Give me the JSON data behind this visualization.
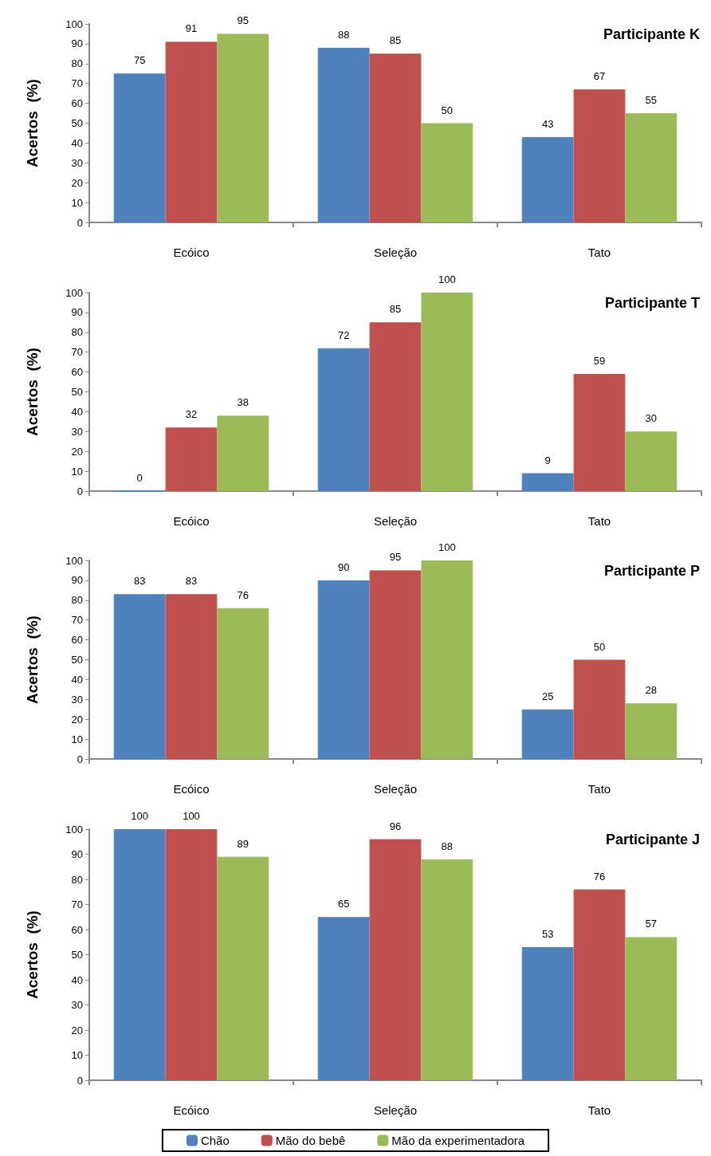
{
  "chart_data": [
    {
      "type": "bar",
      "ylabel": "Acertos  (%)",
      "annotations": [
        "Participante K"
      ],
      "categories": [
        "Ecóico",
        "Seleção",
        "Tato"
      ],
      "series": [
        {
          "color": "#4f81bd",
          "values": [
            75,
            88,
            43
          ]
        },
        {
          "color": "#c0504d",
          "values": [
            91,
            85,
            67
          ]
        },
        {
          "color": "#9bbb59",
          "values": [
            95,
            50,
            55
          ]
        }
      ],
      "ylim": [
        0,
        100
      ],
      "yticks": [
        0,
        10,
        20,
        30,
        40,
        50,
        60,
        70,
        80,
        90,
        100
      ],
      "grid": false,
      "legend": false,
      "data_labels": true
    },
    {
      "type": "bar",
      "ylabel": "Acertos  (%)",
      "annotations": [
        "Participante T"
      ],
      "categories": [
        "Ecóico",
        "Seleção",
        "Tato"
      ],
      "series": [
        {
          "color": "#4f81bd",
          "values": [
            0,
            72,
            9
          ]
        },
        {
          "color": "#c0504d",
          "values": [
            32,
            85,
            59
          ]
        },
        {
          "color": "#9bbb59",
          "values": [
            38,
            100,
            30
          ]
        }
      ],
      "ylim": [
        0,
        100
      ],
      "yticks": [
        0,
        10,
        20,
        30,
        40,
        50,
        60,
        70,
        80,
        90,
        100
      ],
      "grid": false,
      "legend": false,
      "data_labels": true
    },
    {
      "type": "bar",
      "ylabel": "Acertos  (%)",
      "annotations": [
        "Participante P"
      ],
      "categories": [
        "Ecóico",
        "Seleção",
        "Tato"
      ],
      "series": [
        {
          "color": "#4f81bd",
          "values": [
            83,
            90,
            25
          ]
        },
        {
          "color": "#c0504d",
          "values": [
            83,
            95,
            50
          ]
        },
        {
          "color": "#9bbb59",
          "values": [
            76,
            100,
            28
          ]
        }
      ],
      "ylim": [
        0,
        100
      ],
      "yticks": [
        0,
        10,
        20,
        30,
        40,
        50,
        60,
        70,
        80,
        90,
        100
      ],
      "grid": false,
      "legend": false,
      "data_labels": true
    },
    {
      "type": "bar",
      "ylabel": "Acertos  (%)",
      "annotations": [
        "Participante J"
      ],
      "categories": [
        "Ecóico",
        "Seleção",
        "Tato"
      ],
      "series": [
        {
          "name": "Chão",
          "color": "#4f81bd",
          "values": [
            100,
            65,
            53
          ]
        },
        {
          "name": "Mão do bebê",
          "color": "#c0504d",
          "values": [
            100,
            96,
            76
          ]
        },
        {
          "name": "Mão da experimentadora",
          "color": "#9bbb59",
          "values": [
            89,
            88,
            57
          ]
        }
      ],
      "ylim": [
        0,
        100
      ],
      "yticks": [
        0,
        10,
        20,
        30,
        40,
        50,
        60,
        70,
        80,
        90,
        100
      ],
      "grid": false,
      "legend": "bottom",
      "data_labels": true
    }
  ]
}
